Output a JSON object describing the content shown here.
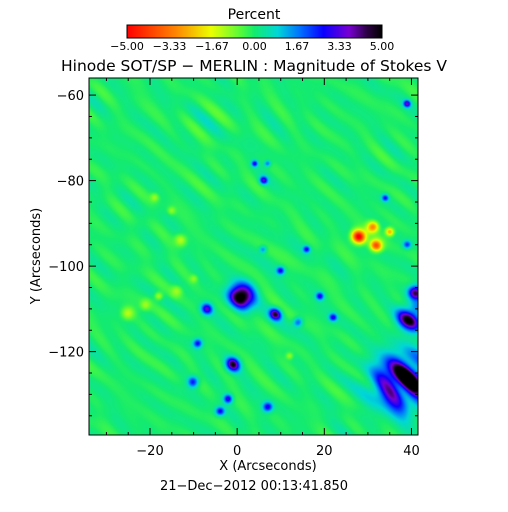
{
  "colorbar": {
    "title": "Percent",
    "ticks": [
      "−5.00",
      "−3.33",
      "−1.67",
      "0.00",
      "1.67",
      "3.33",
      "5.00"
    ],
    "min": -5.0,
    "max": 5.0
  },
  "chart_data": {
    "type": "heatmap",
    "title": "Hinode SOT/SP − MERLIN : Magnitude of Stokes V",
    "xlabel": "X (Arcseconds)",
    "ylabel": "Y (Arcseconds)",
    "xlim": [
      -34,
      41.5
    ],
    "ylim": [
      -139.5,
      -56
    ],
    "x_ticks": [
      -20,
      0,
      20,
      40
    ],
    "y_ticks": [
      -60,
      -80,
      -100,
      -120
    ],
    "x_tick_labels": [
      "−20",
      "0",
      "20",
      "40"
    ],
    "y_tick_labels": [
      "−60",
      "−80",
      "−100",
      "−120"
    ],
    "colormap": "rainbow (red low, green zero, blue/purple/black high)",
    "value_range": [
      -5.0,
      5.0
    ],
    "background_value": 0.0,
    "features": [
      {
        "kind": "negative",
        "x": -25,
        "y": -111,
        "radius": 1.5,
        "value": -1.3
      },
      {
        "kind": "negative",
        "x": -21,
        "y": -109,
        "radius": 1.2,
        "value": -1.2
      },
      {
        "kind": "negative",
        "x": -19,
        "y": -84,
        "radius": 1.0,
        "value": -1.1
      },
      {
        "kind": "negative",
        "x": -15,
        "y": -87,
        "radius": 0.9,
        "value": -1.0
      },
      {
        "kind": "negative",
        "x": -13,
        "y": -94,
        "radius": 1.4,
        "value": -1.2
      },
      {
        "kind": "negative",
        "x": -14,
        "y": -106,
        "radius": 1.3,
        "value": -1.2
      },
      {
        "kind": "negative",
        "x": -18,
        "y": -107,
        "radius": 1.0,
        "value": -1.0
      },
      {
        "kind": "negative",
        "x": -10,
        "y": -103,
        "radius": 0.9,
        "value": -1.0
      },
      {
        "kind": "negative",
        "x": 12,
        "y": -121,
        "radius": 0.8,
        "value": -1.0
      },
      {
        "kind": "negative",
        "x": 28,
        "y": -93,
        "radius": 1.6,
        "value": -4.5
      },
      {
        "kind": "negative",
        "x": 31,
        "y": -91,
        "radius": 1.3,
        "value": -3.6
      },
      {
        "kind": "negative",
        "x": 32,
        "y": -95,
        "radius": 1.4,
        "value": -3.8
      },
      {
        "kind": "negative",
        "x": 35,
        "y": -92,
        "radius": 1.0,
        "value": -2.2
      },
      {
        "kind": "positive",
        "x": 1,
        "y": -107,
        "radius": 2.8,
        "value": 5.0
      },
      {
        "kind": "positive",
        "x": 38,
        "y": -127,
        "radius": 6.0,
        "value": 5.0
      },
      {
        "kind": "positive",
        "x": 40,
        "y": -112,
        "radius": 2.8,
        "value": 4.6
      },
      {
        "kind": "positive",
        "x": 41,
        "y": -106,
        "radius": 1.6,
        "value": 3.8
      },
      {
        "kind": "positive",
        "x": -1,
        "y": -123,
        "radius": 1.6,
        "value": 3.6
      },
      {
        "kind": "positive",
        "x": -10,
        "y": -127,
        "radius": 1.2,
        "value": 3.0
      },
      {
        "kind": "positive",
        "x": 9,
        "y": -111,
        "radius": 1.4,
        "value": 3.4
      },
      {
        "kind": "positive",
        "x": 7,
        "y": -133,
        "radius": 1.1,
        "value": 2.8
      },
      {
        "kind": "positive",
        "x": -4,
        "y": -134,
        "radius": 1.0,
        "value": 2.6
      },
      {
        "kind": "positive",
        "x": -7,
        "y": -110,
        "radius": 1.3,
        "value": 3.0
      },
      {
        "kind": "positive",
        "x": -9,
        "y": -118,
        "radius": 1.0,
        "value": 2.6
      },
      {
        "kind": "positive",
        "x": 14,
        "y": -113,
        "radius": 1.0,
        "value": 2.6
      },
      {
        "kind": "positive",
        "x": 19,
        "y": -107,
        "radius": 0.9,
        "value": 2.4
      },
      {
        "kind": "positive",
        "x": 22,
        "y": -112,
        "radius": 0.9,
        "value": 2.2
      },
      {
        "kind": "positive",
        "x": 10,
        "y": -101,
        "radius": 0.9,
        "value": 2.4
      },
      {
        "kind": "positive",
        "x": 6,
        "y": -80,
        "radius": 0.9,
        "value": 2.6
      },
      {
        "kind": "positive",
        "x": 4,
        "y": -76,
        "radius": 0.7,
        "value": 2.4
      },
      {
        "kind": "positive",
        "x": 7,
        "y": -76,
        "radius": 0.7,
        "value": 2.2
      },
      {
        "kind": "positive",
        "x": 34,
        "y": -84,
        "radius": 0.8,
        "value": 2.2
      },
      {
        "kind": "positive",
        "x": 39,
        "y": -95,
        "radius": 0.9,
        "value": 2.3
      },
      {
        "kind": "positive",
        "x": 39,
        "y": -62,
        "radius": 0.8,
        "value": 2.4
      },
      {
        "kind": "positive",
        "x": 6,
        "y": -96,
        "radius": 0.8,
        "value": 2.1
      },
      {
        "kind": "positive",
        "x": -2,
        "y": -131,
        "radius": 1.0,
        "value": 3.0
      },
      {
        "kind": "positive",
        "x": 16,
        "y": -96,
        "radius": 0.8,
        "value": 2.2
      }
    ],
    "timestamp": "21−Dec−2012 00:13:41.850"
  }
}
